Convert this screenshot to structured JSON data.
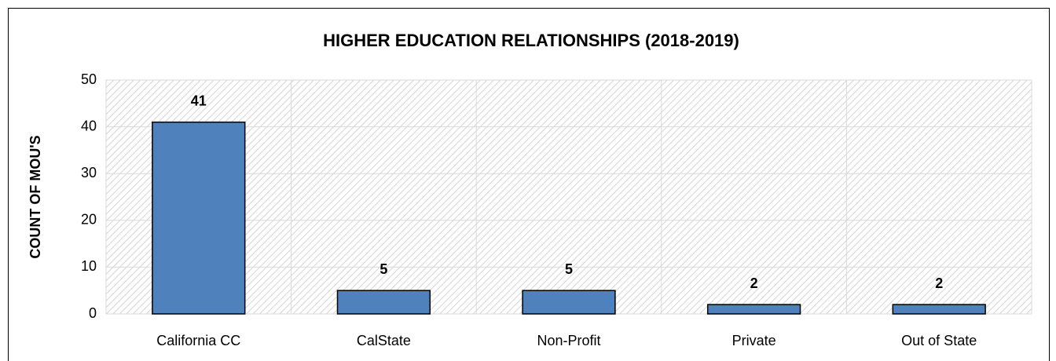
{
  "chart_data": {
    "type": "bar",
    "title": "HIGHER EDUCATION RELATIONSHIPS (2018-2019)",
    "y_label": "COUNT OF MOU'S",
    "categories": [
      "California CC",
      "CalState",
      "Non-Profit",
      "Private",
      "Out of State"
    ],
    "values": [
      41,
      5,
      5,
      2,
      2
    ],
    "color": "#4f81bd",
    "ylim": [
      0,
      50
    ],
    "yticks": [
      0,
      10,
      20,
      30,
      40,
      50
    ],
    "grid": true
  }
}
